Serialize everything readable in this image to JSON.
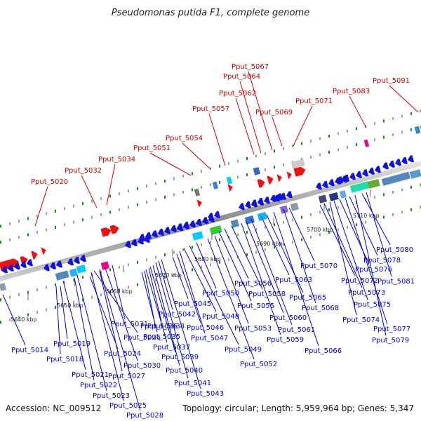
{
  "title": "Pseudomonas putida F1, complete genome",
  "footer": {
    "accession": "Accession: NC_009512",
    "topology": "Topology: circular; Length: 5,959,964 bp; Genes: 5,347"
  },
  "colors": {
    "forward_label": "#cc0000",
    "reverse_label": "#0000cc",
    "backbone": "#999999",
    "tick": "#118811"
  },
  "ticks": [
    "5640 kbp",
    "5650 kbp",
    "5660 kbp",
    "5670 kbp",
    "5680 kbp",
    "5690 kbp",
    "5700 kbp",
    "5710 kbp"
  ],
  "forward_labels": [
    "Pput_5020",
    "Pput_5032",
    "Pput_5034",
    "Pput_5051",
    "Pput_5054",
    "Pput_5057",
    "Pput_5062",
    "Pput_5064",
    "Pput_5067",
    "Pput_5069",
    "Pput_5071",
    "Pput_5083",
    "Pput_5091"
  ],
  "reverse_labels": [
    "Pput_5014",
    "Pput_5019",
    "Pput_5018",
    "Pput_5021",
    "Pput_5022",
    "Pput_5023",
    "Pput_5024",
    "Pput_5025",
    "Pput_5026",
    "Pput_5027",
    "Pput_5028",
    "Pput_5030",
    "Pput_5031",
    "Pput_5035",
    "Pput_5036",
    "Pput_5037",
    "Pput_5038",
    "Pput_5039",
    "Pput_5040",
    "Pput_5041",
    "Pput_5042",
    "Pput_5043",
    "Pput_5045",
    "Pput_5046",
    "Pput_5047",
    "Pput_5048",
    "Pput_5049",
    "Pput_5050",
    "Pput_5052",
    "Pput_5053",
    "Pput_5055",
    "Pput_5056",
    "Pput_5058",
    "Pput_5059",
    "Pput_5060",
    "Pput_5061",
    "Pput_5063",
    "Pput_5065",
    "Pput_5066",
    "Pput_5068",
    "Pput_5070",
    "Pput_5072",
    "Pput_5073",
    "Pput_5074",
    "Pput_5075",
    "Pput_5076",
    "Pput_5077",
    "Pput_5078",
    "Pput_5079",
    "Pput_5080",
    "Pput_5081"
  ]
}
